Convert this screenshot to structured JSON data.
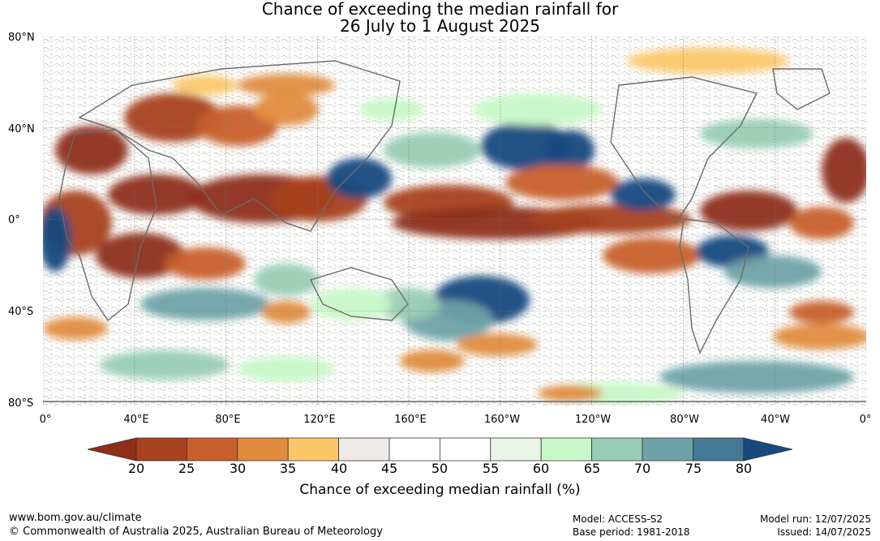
{
  "title": {
    "line1": "Chance of exceeding the median rainfall for",
    "line2": "26 July to 1 August 2025"
  },
  "axes": {
    "lat_labels": [
      "80°N",
      "40°N",
      "0°",
      "40°S",
      "80°S"
    ],
    "lon_labels": [
      "0°",
      "40°E",
      "80°E",
      "120°E",
      "160°E",
      "160°W",
      "120°W",
      "80°W",
      "40°W",
      "0°"
    ]
  },
  "colorbar": {
    "title": "Chance of exceeding median rainfall (%)",
    "ticks": [
      "20",
      "25",
      "30",
      "35",
      "40",
      "45",
      "50",
      "55",
      "60",
      "65",
      "70",
      "75",
      "80"
    ],
    "colors": [
      "#a8411f",
      "#c8602d",
      "#e08c3e",
      "#fbc76a",
      "#ede9e5",
      "#ffffff",
      "#ffffff",
      "#e8f5e6",
      "#c8f8c8",
      "#98ccb5",
      "#6fa3a8",
      "#457895"
    ],
    "under_color": "#8e2f1a",
    "over_color": "#17497f"
  },
  "footer": {
    "website": "www.bom.gov.au/climate",
    "copyright": "© Commonwealth of Australia 2025, Australian Bureau of Meteorology",
    "model": "Model: ACCESS-S2",
    "base_period": "Base period: 1981-2018",
    "model_run": "Model run: 12/07/2025",
    "issued": "Issued: 14/07/2025"
  }
}
